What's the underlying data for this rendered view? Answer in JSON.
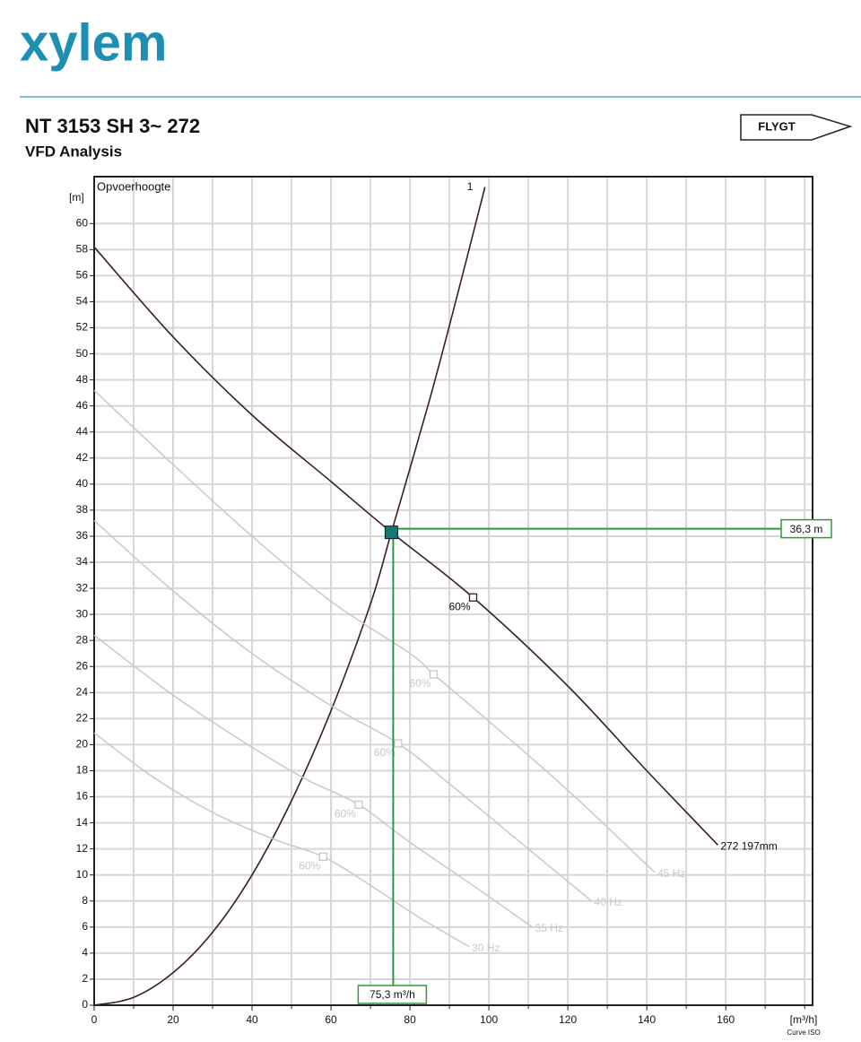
{
  "header": {
    "logo": "xylem",
    "brand": "FLYGT",
    "title": "NT 3153 SH 3~ 272",
    "subtitle": "VFD Analysis"
  },
  "chart_data": {
    "type": "line",
    "title": "Opvoerhoogte",
    "x_label": "[m³/h]",
    "y_label": "[m]",
    "footnote": "Curve ISO",
    "xlim": [
      0,
      182
    ],
    "ylim": [
      0,
      63.6
    ],
    "xticks": [
      0,
      20,
      40,
      60,
      80,
      100,
      120,
      140,
      160
    ],
    "x_minor_ticks": [
      10,
      30,
      50,
      70,
      90,
      110,
      130,
      150,
      170,
      180
    ],
    "yticks": [
      0,
      2,
      4,
      6,
      8,
      10,
      12,
      14,
      16,
      18,
      20,
      22,
      24,
      26,
      28,
      30,
      32,
      34,
      36,
      38,
      40,
      42,
      44,
      46,
      48,
      50,
      52,
      54,
      56,
      58,
      60
    ],
    "grid": true,
    "series": [
      {
        "name": "272 197mm",
        "color": "#3a1f24",
        "x": [
          0,
          20,
          40,
          60,
          75.3,
          96,
          120,
          140,
          158
        ],
        "values": [
          58.2,
          51.3,
          45.3,
          40.2,
          36.3,
          31.3,
          24.5,
          18,
          12.3
        ]
      },
      {
        "name": "1",
        "color": "#3a1f24",
        "x": [
          0,
          10,
          20,
          30,
          40,
          50,
          60,
          70,
          75.3,
          85,
          92,
          99
        ],
        "values": [
          0,
          0.6,
          2.5,
          5.6,
          10,
          15.7,
          22.6,
          30.8,
          36.3,
          46.5,
          54.5,
          62.8
        ]
      },
      {
        "name": "45 Hz",
        "color": "#c8c8c8",
        "x": [
          0,
          20,
          40,
          60,
          80,
          86,
          100,
          120,
          142
        ],
        "values": [
          47.2,
          41.5,
          36,
          31,
          27,
          25.4,
          21.8,
          16.5,
          10.2
        ]
      },
      {
        "name": "40 Hz",
        "color": "#c8c8c8",
        "x": [
          0,
          20,
          40,
          60,
          77,
          90,
          110,
          126
        ],
        "values": [
          37.2,
          31.8,
          27,
          23,
          20.1,
          17,
          12,
          8
        ]
      },
      {
        "name": "35 Hz",
        "color": "#c8c8c8",
        "x": [
          0,
          20,
          40,
          54,
          67,
          80,
          95,
          111
        ],
        "values": [
          28.4,
          23.8,
          19.8,
          17.3,
          15.4,
          12.5,
          9.4,
          6
        ]
      },
      {
        "name": "30 Hz",
        "color": "#c8c8c8",
        "x": [
          0,
          15,
          30,
          45,
          58,
          70,
          82,
          95
        ],
        "values": [
          20.9,
          17.5,
          14.8,
          12.8,
          11.4,
          9.2,
          6.8,
          4.5
        ]
      }
    ],
    "efficiency_points": [
      {
        "x": 96,
        "y": 31.3,
        "label": "60%",
        "color": "#3a1f24"
      },
      {
        "x": 86,
        "y": 25.4,
        "label": "60%",
        "color": "#c8c8c8"
      },
      {
        "x": 77,
        "y": 20.1,
        "label": "60%",
        "color": "#c8c8c8"
      },
      {
        "x": 67,
        "y": 15.4,
        "label": "60%",
        "color": "#c8c8c8"
      },
      {
        "x": 58,
        "y": 11.4,
        "label": "60%",
        "color": "#c8c8c8"
      }
    ],
    "operating_point": {
      "x": 75.3,
      "y": 36.3,
      "x_label": "75,3 m³/h",
      "y_label": "36,3 m",
      "color": "#2e9a3a",
      "fill": "#17786e"
    }
  }
}
